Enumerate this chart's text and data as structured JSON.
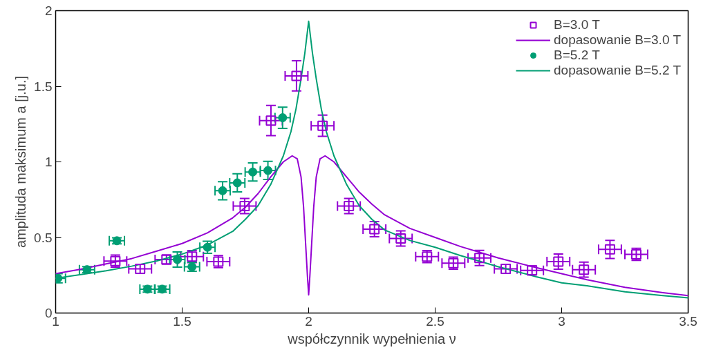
{
  "chart_data": {
    "type": "scatter",
    "xlabel": "współczynnik wypełnienia ν",
    "ylabel": "amplituda maksimum a [j.u.]",
    "xlim": [
      1,
      3.5
    ],
    "ylim": [
      0,
      2
    ],
    "xticks": [
      1,
      1.5,
      2,
      2.5,
      3,
      3.5
    ],
    "yticks": [
      0,
      0.5,
      1,
      1.5,
      2
    ],
    "legend": "top right",
    "grid": false,
    "series": [
      {
        "name": "B=3.0 T",
        "marker": "square",
        "color": "#9400d3",
        "x": [
          1.236,
          1.334,
          1.438,
          1.539,
          1.643,
          1.747,
          1.851,
          1.952,
          2.055,
          2.159,
          2.26,
          2.364,
          2.468,
          2.572,
          2.675,
          2.779,
          2.883,
          2.987,
          3.088,
          3.191,
          3.295
        ],
        "values": [
          0.344,
          0.292,
          0.354,
          0.373,
          0.34,
          0.708,
          1.273,
          1.569,
          1.239,
          0.708,
          0.555,
          0.493,
          0.373,
          0.33,
          0.364,
          0.292,
          0.282,
          0.34,
          0.287,
          0.421,
          0.388
        ],
        "errors": [
          0.04,
          0.03,
          0.03,
          0.04,
          0.04,
          0.05,
          0.1,
          0.1,
          0.07,
          0.05,
          0.05,
          0.05,
          0.04,
          0.04,
          0.05,
          0.03,
          0.03,
          0.05,
          0.05,
          0.06,
          0.04
        ],
        "xerrors": [
          0.045,
          0.045,
          0.045,
          0.045,
          0.045,
          0.045,
          0.045,
          0.045,
          0.045,
          0.045,
          0.045,
          0.045,
          0.045,
          0.045,
          0.045,
          0.045,
          0.045,
          0.045,
          0.045,
          0.045,
          0.045
        ]
      },
      {
        "name": "dopasowanie B=3.0 T",
        "type": "line",
        "color": "#9400d3",
        "x": [
          1,
          1.1,
          1.2,
          1.3,
          1.4,
          1.5,
          1.6,
          1.7,
          1.75,
          1.8,
          1.85,
          1.9,
          1.935,
          1.955,
          1.97,
          1.98,
          1.99,
          1.995,
          2,
          2.005,
          2.01,
          2.02,
          2.03,
          2.045,
          2.065,
          2.1,
          2.15,
          2.2,
          2.25,
          2.3,
          2.4,
          2.5,
          2.6,
          2.75,
          2.9,
          3,
          3.1,
          3.25,
          3.4,
          3.5
        ],
        "values": [
          0.26,
          0.29,
          0.325,
          0.36,
          0.41,
          0.46,
          0.53,
          0.63,
          0.7,
          0.79,
          0.9,
          1.0,
          1.04,
          1.02,
          0.9,
          0.7,
          0.4,
          0.25,
          0.12,
          0.25,
          0.4,
          0.7,
          0.9,
          1.02,
          1.04,
          1.0,
          0.9,
          0.8,
          0.72,
          0.65,
          0.56,
          0.5,
          0.44,
          0.364,
          0.3,
          0.26,
          0.22,
          0.17,
          0.135,
          0.115
        ]
      },
      {
        "name": "B=5.2 T",
        "marker": "circle",
        "color": "#009e73",
        "x": [
          1.009,
          1.124,
          1.242,
          1.363,
          1.421,
          1.481,
          1.539,
          1.6,
          1.66,
          1.718,
          1.779,
          1.839,
          1.897
        ],
        "values": [
          0.23,
          0.287,
          0.478,
          0.158,
          0.158,
          0.354,
          0.306,
          0.435,
          0.809,
          0.861,
          0.933,
          0.943,
          1.292
        ],
        "errors": [
          0.03,
          0.02,
          0.02,
          0.02,
          0.02,
          0.05,
          0.03,
          0.04,
          0.06,
          0.06,
          0.06,
          0.06,
          0.07
        ],
        "xerrors": [
          0.03,
          0.03,
          0.03,
          0.03,
          0.03,
          0.03,
          0.03,
          0.03,
          0.03,
          0.03,
          0.03,
          0.03,
          0.03
        ]
      },
      {
        "name": "dopasowanie B=5.2 T",
        "type": "line",
        "color": "#009e73",
        "x": [
          1,
          1.1,
          1.2,
          1.3,
          1.4,
          1.5,
          1.6,
          1.7,
          1.75,
          1.8,
          1.85,
          1.9,
          1.93,
          1.95,
          1.97,
          1.985,
          2,
          2.015,
          2.03,
          2.05,
          2.07,
          2.1,
          2.15,
          2.2,
          2.25,
          2.3,
          2.4,
          2.5,
          2.6,
          2.75,
          2.9,
          3,
          3.1,
          3.25,
          3.4,
          3.5
        ],
        "values": [
          0.23,
          0.255,
          0.28,
          0.31,
          0.345,
          0.39,
          0.45,
          0.54,
          0.62,
          0.71,
          0.85,
          1.04,
          1.2,
          1.35,
          1.55,
          1.72,
          1.93,
          1.72,
          1.55,
          1.35,
          1.2,
          1.04,
          0.85,
          0.71,
          0.62,
          0.55,
          0.48,
          0.435,
          0.38,
          0.306,
          0.24,
          0.2,
          0.18,
          0.14,
          0.115,
          0.1
        ]
      }
    ]
  }
}
